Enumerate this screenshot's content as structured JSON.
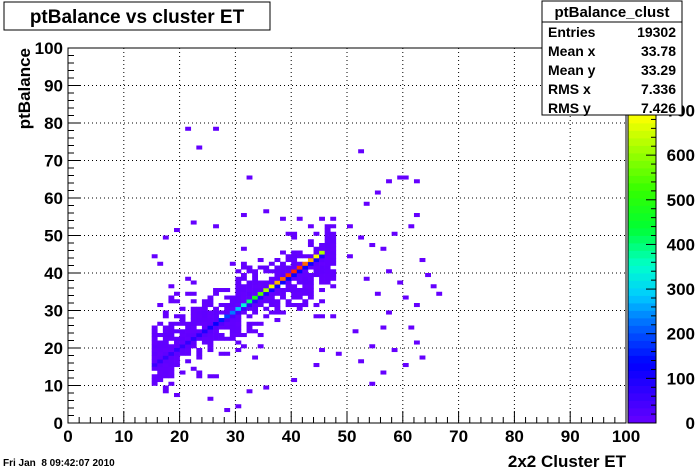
{
  "chart_data": {
    "type": "heatmap",
    "title": "ptBalance vs cluster ET",
    "xlabel": "2x2 Cluster ET",
    "ylabel": "ptBalance",
    "xlim": [
      0,
      100
    ],
    "ylim": [
      0,
      100
    ],
    "xticks": [
      "0",
      "10",
      "20",
      "30",
      "40",
      "50",
      "60",
      "70",
      "80",
      "90",
      "100"
    ],
    "yticks": [
      "0",
      "10",
      "20",
      "30",
      "40",
      "50",
      "60",
      "70",
      "80",
      "90",
      "100"
    ],
    "zticks": [
      "0",
      "100",
      "200",
      "300",
      "400",
      "500",
      "600",
      "700"
    ],
    "zlim": [
      0,
      840
    ],
    "grid": true,
    "colorbar": "right",
    "bin_width": 1,
    "stats": {
      "name": "ptBalance_clust",
      "rows": [
        {
          "label": "Entries",
          "value": "19302"
        },
        {
          "label": "Mean x",
          "value": "33.78"
        },
        {
          "label": "Mean y",
          "value": "33.29"
        },
        {
          "label": "RMS x",
          "value": "7.336"
        },
        {
          "label": "RMS y",
          "value": "7.426"
        }
      ]
    },
    "bins_note": "each bin [x, y, count] in data units (1x1 bins)",
    "band": {
      "x_range": [
        15,
        46
      ],
      "y_of_x": "y = x",
      "peak_count": 820,
      "peak_at_x": 40
    },
    "cloud": {
      "x_range": [
        15,
        48
      ],
      "width_y": 6,
      "typical_count": 10
    },
    "outliers": [
      [
        21,
        78,
        2
      ],
      [
        23,
        73,
        2
      ],
      [
        26,
        78,
        2
      ],
      [
        52,
        72,
        1
      ],
      [
        57,
        64,
        1
      ],
      [
        59,
        65,
        1
      ],
      [
        60,
        65,
        1
      ],
      [
        62,
        64,
        1
      ],
      [
        32,
        65,
        1
      ],
      [
        55,
        61,
        1
      ],
      [
        53,
        58,
        1
      ],
      [
        62,
        55,
        1
      ],
      [
        61,
        52,
        1
      ],
      [
        58,
        50,
        1
      ],
      [
        54,
        47,
        1
      ],
      [
        63,
        43,
        1
      ],
      [
        64,
        39,
        1
      ],
      [
        65,
        36,
        1
      ],
      [
        66,
        34,
        1
      ],
      [
        62,
        31,
        1
      ],
      [
        61,
        25,
        1
      ],
      [
        62,
        21,
        1
      ],
      [
        63,
        17,
        1
      ],
      [
        60,
        15,
        1
      ],
      [
        56,
        13,
        1
      ],
      [
        54,
        10,
        1
      ],
      [
        58,
        19,
        1
      ],
      [
        28,
        3,
        1
      ],
      [
        30,
        4,
        1
      ],
      [
        25,
        6,
        1
      ],
      [
        19,
        7,
        1
      ],
      [
        15,
        44,
        1
      ],
      [
        16,
        42,
        1
      ],
      [
        17,
        49,
        1
      ],
      [
        19,
        51,
        1
      ],
      [
        22,
        53,
        1
      ],
      [
        26,
        52,
        1
      ],
      [
        31,
        55,
        1
      ],
      [
        35,
        56,
        1
      ],
      [
        38,
        54,
        1
      ],
      [
        45,
        54,
        1
      ],
      [
        50,
        52,
        1
      ],
      [
        52,
        49,
        1
      ],
      [
        56,
        46,
        1
      ],
      [
        57,
        40,
        1
      ],
      [
        59,
        37,
        1
      ],
      [
        60,
        33,
        1
      ],
      [
        57,
        29,
        1
      ],
      [
        56,
        25,
        1
      ],
      [
        54,
        20,
        1
      ],
      [
        52,
        16,
        1
      ],
      [
        44,
        15,
        1
      ],
      [
        40,
        11,
        1
      ],
      [
        35,
        9,
        1
      ],
      [
        32,
        8,
        1
      ],
      [
        23,
        12,
        1
      ],
      [
        18,
        14,
        1
      ],
      [
        17,
        29,
        1
      ],
      [
        15,
        24,
        1
      ],
      [
        16,
        31,
        1
      ],
      [
        21,
        38,
        1
      ],
      [
        18,
        36,
        1
      ],
      [
        45,
        19,
        1
      ],
      [
        48,
        18,
        1
      ],
      [
        51,
        24,
        1
      ],
      [
        47,
        28,
        1
      ],
      [
        55,
        34,
        1
      ],
      [
        53,
        38,
        1
      ],
      [
        50,
        44,
        1
      ],
      [
        47,
        50,
        1
      ],
      [
        43,
        52,
        1
      ]
    ]
  },
  "footer": {
    "timestamp": "Fri Jan  8 09:42:07 2010"
  }
}
